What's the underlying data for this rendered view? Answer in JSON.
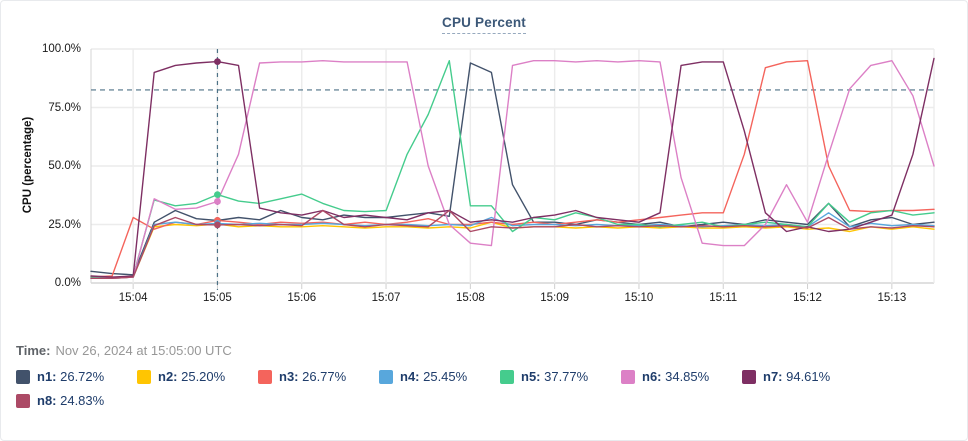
{
  "title": "CPU Percent",
  "time_row": {
    "label": "Time:",
    "value": "Nov 26, 2024 at 15:05:00 UTC"
  },
  "y_axis": {
    "label": "CPU (percentage)",
    "ticks": [
      "100.0%",
      "75.0%",
      "50.0%",
      "25.0%",
      "0.0%"
    ]
  },
  "x_axis": {
    "ticks": [
      "15:04",
      "15:05",
      "15:06",
      "15:07",
      "15:08",
      "15:09",
      "15:10",
      "15:11",
      "15:12",
      "15:13"
    ]
  },
  "legend": [
    {
      "name": "n1",
      "value": "26.72%",
      "color": "#42526b"
    },
    {
      "name": "n2",
      "value": "25.20%",
      "color": "#ffc502"
    },
    {
      "name": "n3",
      "value": "26.77%",
      "color": "#f4645c"
    },
    {
      "name": "n4",
      "value": "25.45%",
      "color": "#58a7dc"
    },
    {
      "name": "n5",
      "value": "37.77%",
      "color": "#45cc8d"
    },
    {
      "name": "n6",
      "value": "34.85%",
      "color": "#dc80c6"
    },
    {
      "name": "n7",
      "value": "94.61%",
      "color": "#7e2f63"
    },
    {
      "name": "n8",
      "value": "24.83%",
      "color": "#ac4a66"
    }
  ],
  "style_colors": {
    "grid": "#ececec",
    "axis": "#d6d6d6",
    "tick": "#cfcfcf",
    "crosshair": "#4d7286",
    "threshold": "#4d7286"
  },
  "chart_data": {
    "type": "line",
    "title": "CPU Percent",
    "ylabel": "CPU (percentage)",
    "ylim": [
      0,
      100
    ],
    "grid": true,
    "x_start": "15:03:30",
    "x_end": "15:13:30",
    "interval_seconds": 15,
    "crosshair_time": "15:05:00",
    "crosshair_index": 6,
    "threshold_percent": 82.5,
    "values_at_crosshair": {
      "n1": 26.72,
      "n2": 25.2,
      "n3": 26.77,
      "n4": 25.45,
      "n5": 37.77,
      "n6": 34.85,
      "n7": 94.61,
      "n8": 24.83
    },
    "series": [
      {
        "name": "n1",
        "color": "#42526b",
        "values": [
          5,
          4,
          3.5,
          26,
          31,
          27.5,
          26.72,
          28,
          27,
          31,
          28,
          27,
          29,
          28,
          28,
          29,
          30,
          28.5,
          94,
          90,
          42,
          26,
          26,
          25,
          27,
          26,
          25,
          26,
          24,
          25,
          26,
          25,
          27,
          26,
          25,
          34,
          24,
          27,
          28,
          25,
          26
        ]
      },
      {
        "name": "n2",
        "color": "#ffc502",
        "values": [
          2,
          2,
          2.5,
          24,
          25,
          24.5,
          25.2,
          24,
          24.5,
          24,
          24,
          24.5,
          24,
          23.5,
          24,
          24,
          23.5,
          24,
          23.5,
          26,
          23.5,
          24,
          24,
          23.5,
          24,
          23.5,
          24,
          23.5,
          24,
          23.5,
          23.5,
          24,
          23.5,
          24,
          23,
          23.5,
          22,
          24,
          23,
          24,
          23
        ]
      },
      {
        "name": "n3",
        "color": "#f4645c",
        "values": [
          2.5,
          3,
          28,
          23,
          26,
          25,
          26.77,
          26,
          25,
          26,
          25.5,
          26,
          25,
          26,
          25,
          26,
          27.5,
          25,
          25,
          26,
          25,
          26,
          25,
          26,
          27,
          26,
          27,
          28,
          29,
          30,
          30,
          55,
          92,
          94.5,
          95,
          50,
          31,
          30.5,
          31,
          31,
          31.5
        ]
      },
      {
        "name": "n4",
        "color": "#58a7dc",
        "values": [
          2,
          2,
          2.5,
          25,
          26,
          25,
          25.45,
          25,
          25.5,
          25,
          25,
          25.5,
          25,
          24.5,
          25,
          25,
          24.5,
          25,
          24.5,
          28,
          24.5,
          25,
          25,
          24.5,
          25,
          24.5,
          24.5,
          25,
          24.5,
          24,
          24.5,
          25,
          24.5,
          25,
          24,
          30,
          24,
          25.5,
          24.5,
          25,
          24.5
        ]
      },
      {
        "name": "n5",
        "color": "#45cc8d",
        "values": [
          2.5,
          2,
          3,
          35.5,
          33,
          34,
          37.77,
          35,
          34,
          36,
          38,
          34,
          31,
          30.5,
          31,
          55,
          72,
          95,
          33,
          33,
          22,
          28,
          27,
          30,
          28,
          25,
          25,
          24,
          25,
          26,
          24,
          25,
          26,
          25,
          24,
          34,
          26,
          30,
          31,
          29,
          30
        ]
      },
      {
        "name": "n6",
        "color": "#dc80c6",
        "values": [
          2,
          2,
          2.5,
          36,
          31.5,
          32,
          34.85,
          55,
          94,
          94.5,
          94.5,
          95,
          94.5,
          94.5,
          94.5,
          94.5,
          50,
          25,
          17,
          16,
          93,
          95,
          95,
          94.5,
          95,
          94.5,
          95,
          94.5,
          45,
          17,
          16,
          16,
          25,
          42,
          26,
          55,
          83,
          93,
          95,
          80,
          50
        ]
      },
      {
        "name": "n7",
        "color": "#7e2f63",
        "values": [
          3,
          2.5,
          3,
          90,
          93,
          94,
          94.61,
          93,
          32,
          30,
          29,
          31,
          28,
          29,
          28,
          27,
          30,
          31,
          26,
          27,
          26,
          28,
          29,
          31,
          28,
          27,
          26,
          30,
          93,
          94.5,
          94.5,
          65,
          30,
          22,
          24,
          22,
          23,
          26,
          29,
          55,
          96
        ]
      },
      {
        "name": "n8",
        "color": "#ac4a66",
        "values": [
          2,
          2,
          2.5,
          24.5,
          28,
          25,
          24.83,
          25,
          24.5,
          25,
          24.5,
          31,
          25,
          24,
          25,
          24.5,
          24,
          31,
          22,
          24,
          23.5,
          24,
          24,
          25,
          24,
          24.5,
          24,
          24.5,
          24,
          24.5,
          24,
          24.5,
          24,
          24.5,
          23.5,
          28,
          23,
          24,
          23.5,
          24.5,
          24
        ]
      }
    ]
  }
}
